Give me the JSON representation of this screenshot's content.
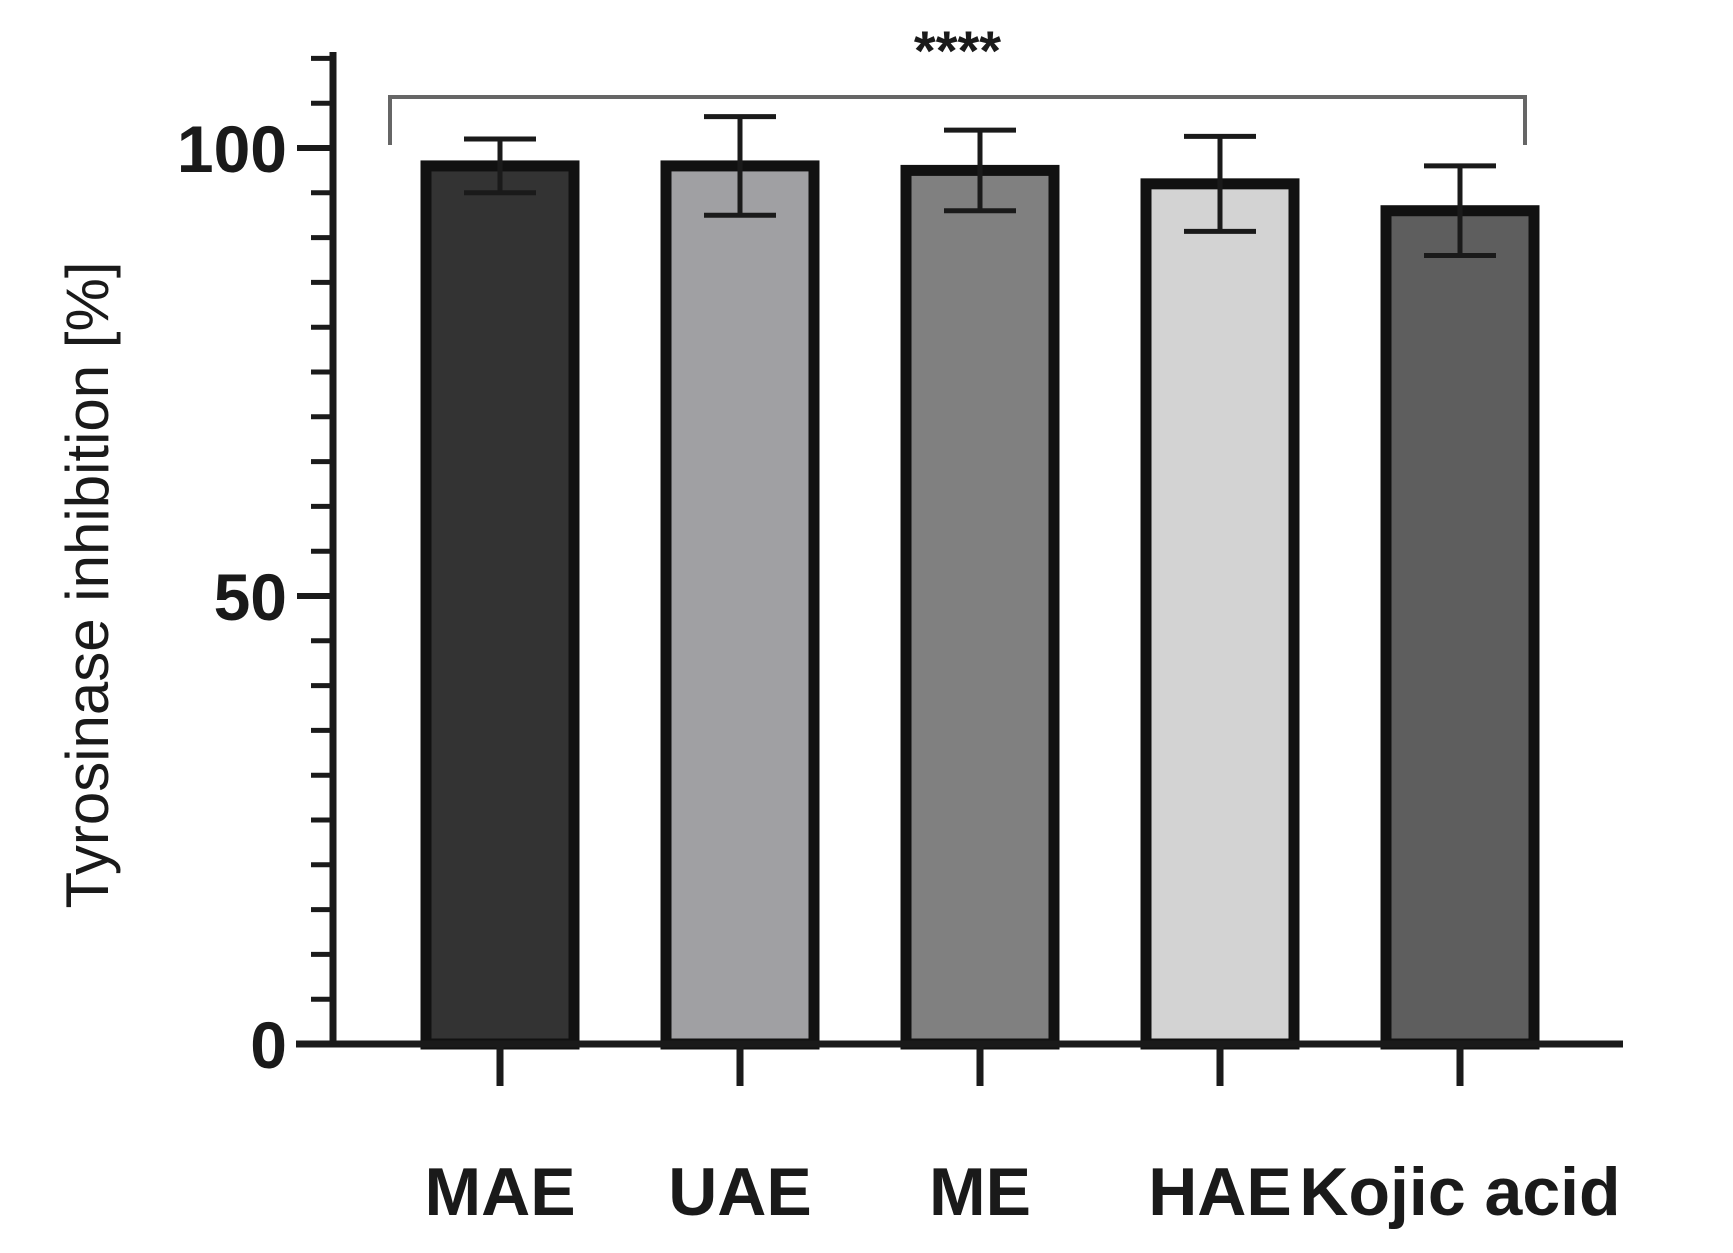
{
  "chart_data": {
    "type": "bar",
    "ylabel": "Tyrosinase inhibition [%]",
    "xlabel": "",
    "categories": [
      "MAE",
      "UAE",
      "ME",
      "HAE",
      "Kojic acid"
    ],
    "values": [
      98,
      98,
      97.5,
      96,
      93
    ],
    "errors": [
      3,
      5.5,
      4.5,
      5.3,
      5
    ],
    "colors": [
      "#333333",
      "#a0a0a3",
      "#808080",
      "#d3d3d3",
      "#5e5e5e"
    ],
    "ylim": [
      0,
      110
    ],
    "yticks": [
      0,
      50,
      100
    ],
    "ytick_labels": [
      "0",
      "50",
      "100"
    ],
    "minor_tick_step": 5,
    "grid": false,
    "significance": {
      "label": "****",
      "from": "MAE",
      "to": "Kojic acid"
    }
  }
}
